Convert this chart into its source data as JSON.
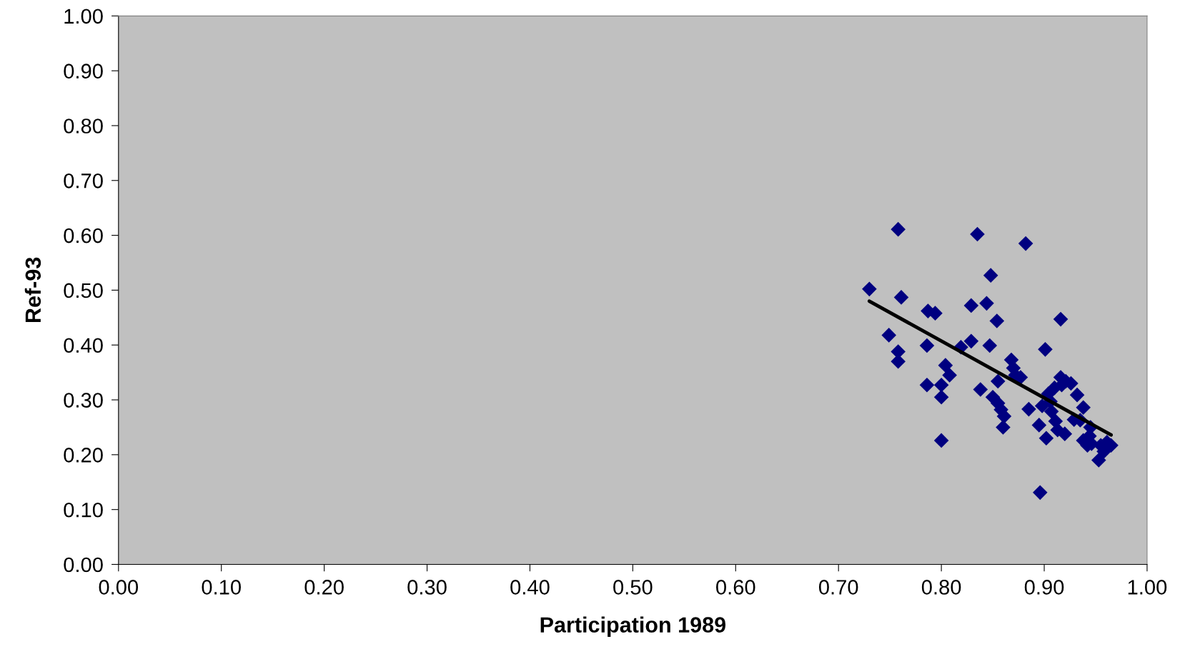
{
  "chart_data": {
    "type": "scatter",
    "xlabel": "Participation 1989",
    "ylabel": "Ref-93",
    "xlim": [
      0,
      1
    ],
    "ylim": [
      0,
      1
    ],
    "xticks": [
      {
        "value": 0,
        "label": "0.00"
      },
      {
        "value": 0.1,
        "label": "0.10"
      },
      {
        "value": 0.2,
        "label": "0.20"
      },
      {
        "value": 0.3,
        "label": "0.30"
      },
      {
        "value": 0.4,
        "label": "0.40"
      },
      {
        "value": 0.5,
        "label": "0.50"
      },
      {
        "value": 0.6,
        "label": "0.60"
      },
      {
        "value": 0.7,
        "label": "0.70"
      },
      {
        "value": 0.8,
        "label": "0.80"
      },
      {
        "value": 0.9,
        "label": "0.90"
      },
      {
        "value": 1,
        "label": "1.00"
      }
    ],
    "yticks": [
      {
        "value": 0,
        "label": "0.00"
      },
      {
        "value": 0.1,
        "label": "0.10"
      },
      {
        "value": 0.2,
        "label": "0.20"
      },
      {
        "value": 0.3,
        "label": "0.30"
      },
      {
        "value": 0.4,
        "label": "0.40"
      },
      {
        "value": 0.5,
        "label": "0.50"
      },
      {
        "value": 0.6,
        "label": "0.60"
      },
      {
        "value": 0.7,
        "label": "0.70"
      },
      {
        "value": 0.8,
        "label": "0.80"
      },
      {
        "value": 0.9,
        "label": "0.90"
      },
      {
        "value": 1,
        "label": "1.00"
      }
    ],
    "grid": false,
    "legend": false,
    "series": [
      {
        "color": "#000080",
        "marker": "diamond",
        "x": [
          0.73,
          0.758,
          0.749,
          0.758,
          0.758,
          0.761,
          0.786,
          0.787,
          0.794,
          0.786,
          0.8,
          0.8,
          0.8,
          0.804,
          0.808,
          0.819,
          0.829,
          0.829,
          0.835,
          0.838,
          0.844,
          0.847,
          0.848,
          0.85,
          0.854,
          0.855,
          0.855,
          0.858,
          0.861,
          0.86,
          0.868,
          0.87,
          0.872,
          0.877,
          0.882,
          0.885,
          0.895,
          0.896,
          0.898,
          0.901,
          0.902,
          0.904,
          0.906,
          0.907,
          0.91,
          0.911,
          0.913,
          0.916,
          0.916,
          0.917,
          0.92,
          0.921,
          0.926,
          0.929,
          0.932,
          0.935,
          0.938,
          0.938,
          0.942,
          0.944,
          0.945,
          0.946,
          0.953,
          0.955,
          0.958,
          0.961,
          0.965
        ],
        "values": [
          0.502,
          0.611,
          0.418,
          0.388,
          0.37,
          0.487,
          0.399,
          0.462,
          0.458,
          0.327,
          0.327,
          0.305,
          0.226,
          0.363,
          0.345,
          0.396,
          0.407,
          0.472,
          0.602,
          0.319,
          0.476,
          0.399,
          0.527,
          0.305,
          0.444,
          0.334,
          0.294,
          0.282,
          0.27,
          0.25,
          0.373,
          0.358,
          0.345,
          0.341,
          0.585,
          0.283,
          0.254,
          0.131,
          0.289,
          0.392,
          0.23,
          0.311,
          0.297,
          0.279,
          0.322,
          0.261,
          0.245,
          0.341,
          0.447,
          0.327,
          0.238,
          0.334,
          0.33,
          0.264,
          0.309,
          0.263,
          0.286,
          0.226,
          0.217,
          0.234,
          0.25,
          0.22,
          0.19,
          0.217,
          0.206,
          0.223,
          0.217
        ]
      },
      {
        "type": "line",
        "color": "#000000",
        "marker": "none",
        "line_style": "solid",
        "x": [
          0.73,
          0.965
        ],
        "values": [
          0.48,
          0.236
        ]
      }
    ]
  }
}
